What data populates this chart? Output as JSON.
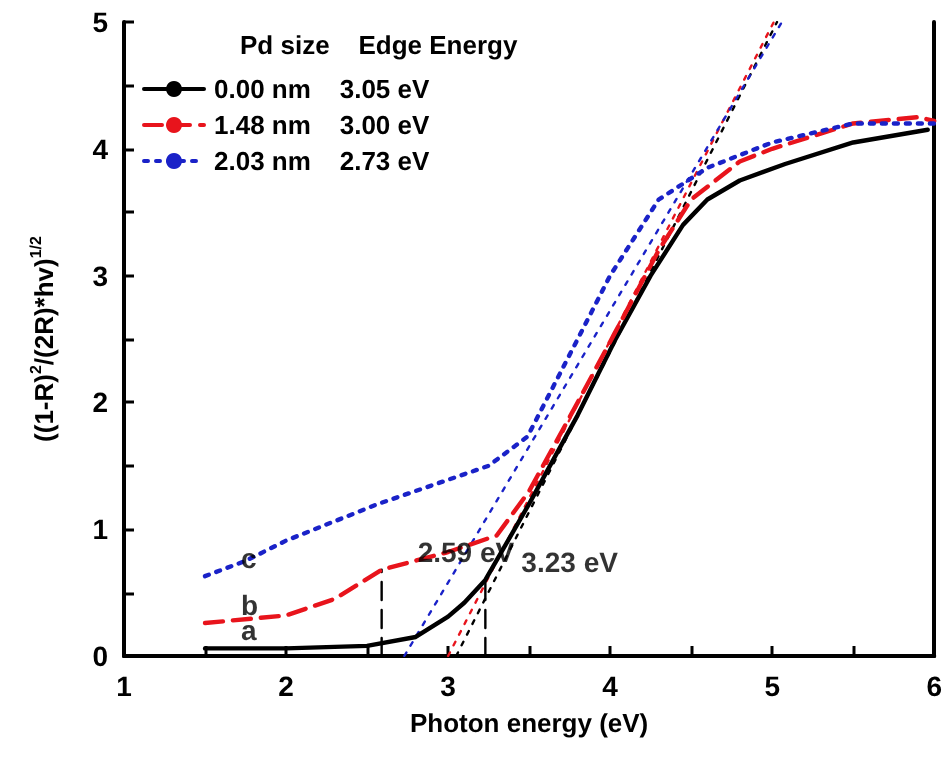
{
  "chart_data": {
    "type": "line",
    "xlabel": "Photon energy (eV)",
    "ylabel": "((1-R)$^{2}$/(2R)*hv)$^{1/2}$",
    "legend_title": "Pd size    Edge Energy",
    "legend": "top left",
    "grid": false,
    "marker": "none",
    "xlim": [
      1,
      6
    ],
    "xticks": [
      1,
      2,
      3,
      4,
      5,
      6
    ],
    "ylim": [
      0,
      5
    ],
    "yticks": [
      0,
      1,
      2,
      3,
      4,
      5
    ],
    "series": [
      {
        "name": "0.00 nm    3.05 eV",
        "color": "#000000",
        "line_style": "solid",
        "x": [
          1.5,
          2.0,
          2.5,
          2.8,
          3.0,
          3.1,
          3.23,
          3.5,
          3.8,
          4.03,
          4.25,
          4.45,
          4.6,
          4.8,
          5.08,
          5.5,
          5.96
        ],
        "values": [
          0.06,
          0.06,
          0.08,
          0.15,
          0.31,
          0.42,
          0.6,
          1.2,
          1.9,
          2.49,
          3.0,
          3.4,
          3.6,
          3.75,
          3.88,
          4.05,
          4.15
        ]
      },
      {
        "name": "1.48 nm    3.00 eV",
        "color": "#e8141c",
        "line_style": "dashed",
        "x": [
          1.5,
          2.0,
          2.3,
          2.59,
          3.0,
          3.3,
          3.5,
          3.8,
          4.03,
          4.3,
          4.5,
          4.8,
          5.0,
          5.5,
          5.9,
          6.0
        ],
        "values": [
          0.26,
          0.32,
          0.45,
          0.68,
          0.82,
          0.95,
          1.3,
          2.0,
          2.55,
          3.2,
          3.6,
          3.9,
          4.0,
          4.2,
          4.25,
          4.22
        ]
      },
      {
        "name": "2.03 nm    2.73 eV",
        "color": "#1a22c8",
        "line_style": "dotted",
        "x": [
          1.5,
          1.75,
          2.0,
          2.57,
          3.25,
          3.49,
          3.8,
          4.0,
          4.3,
          4.6,
          5.0,
          5.5,
          6.0
        ],
        "values": [
          0.63,
          0.75,
          0.91,
          1.2,
          1.5,
          1.73,
          2.5,
          3.0,
          3.6,
          3.85,
          4.05,
          4.2,
          4.2
        ]
      },
      {
        "type": "line",
        "color": "#000000",
        "line_style": "dotted",
        "x": [
          3.05,
          5.03
        ],
        "values": [
          0,
          5
        ]
      },
      {
        "type": "line",
        "color": "#e8141c",
        "line_style": "dotted",
        "x": [
          3.0,
          5.01
        ],
        "values": [
          0,
          5
        ]
      },
      {
        "type": "line",
        "color": "#1a22c8",
        "line_style": "dotted",
        "x": [
          2.73,
          5.06
        ],
        "values": [
          0,
          5
        ]
      },
      {
        "type": "line",
        "color": "#000000",
        "line_style": "dashed",
        "x": [
          2.59,
          2.59
        ],
        "values": [
          0,
          0.68
        ]
      },
      {
        "type": "line",
        "color": "#000000",
        "line_style": "dashed",
        "x": [
          3.23,
          3.23
        ],
        "values": [
          0,
          0.6
        ]
      }
    ],
    "annotations": [
      {
        "text": "2.59 eV",
        "x": 2.59,
        "y": 0.68
      },
      {
        "text": "3.23 eV",
        "x": 3.23,
        "y": 0.6
      },
      {
        "text": "a",
        "x": 1.5,
        "y": 0.06
      },
      {
        "text": "b",
        "x": 1.5,
        "y": 0.26
      },
      {
        "text": "c",
        "x": 1.5,
        "y": 0.63
      }
    ]
  }
}
